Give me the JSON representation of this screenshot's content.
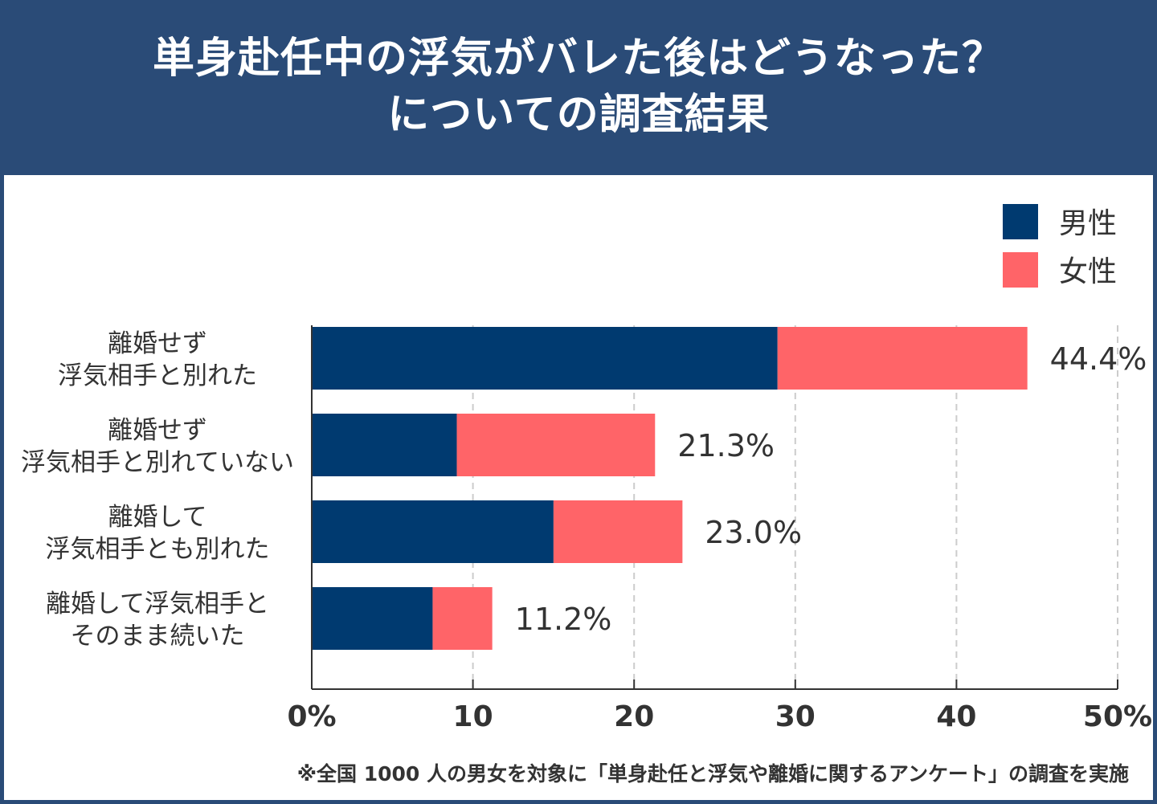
{
  "title_lines": [
    "単身赴任中の浮気がバレた後はどうなった？",
    "についての調査結果"
  ],
  "chart_data": {
    "type": "bar",
    "orientation": "horizontal",
    "stacked": true,
    "categories": [
      [
        "離婚せず",
        "浮気相手と別れた"
      ],
      [
        "離婚せず",
        "浮気相手と別れていない"
      ],
      [
        "離婚して",
        "浮気相手とも別れた"
      ],
      [
        "離婚して浮気相手と",
        "そのまま続いた"
      ]
    ],
    "series": [
      {
        "name": "男性",
        "color": "#003a70",
        "values": [
          28.9,
          9.0,
          15.0,
          7.5
        ]
      },
      {
        "name": "女性",
        "color": "#ff6468",
        "values": [
          15.5,
          12.3,
          8.0,
          3.7
        ]
      }
    ],
    "total_labels": [
      "44.4%",
      "21.3%",
      "23.0%",
      "11.2%"
    ],
    "xlim": [
      0,
      50
    ],
    "xticks": [
      "0%",
      "10",
      "20",
      "30",
      "40",
      "50%"
    ],
    "grid": "vertical dashed",
    "legend_position": "top-right"
  },
  "footnote": "※全国 1000 人の男女を対象に「単身赴任と浮気や離婚に関するアンケート」の調査を実施"
}
